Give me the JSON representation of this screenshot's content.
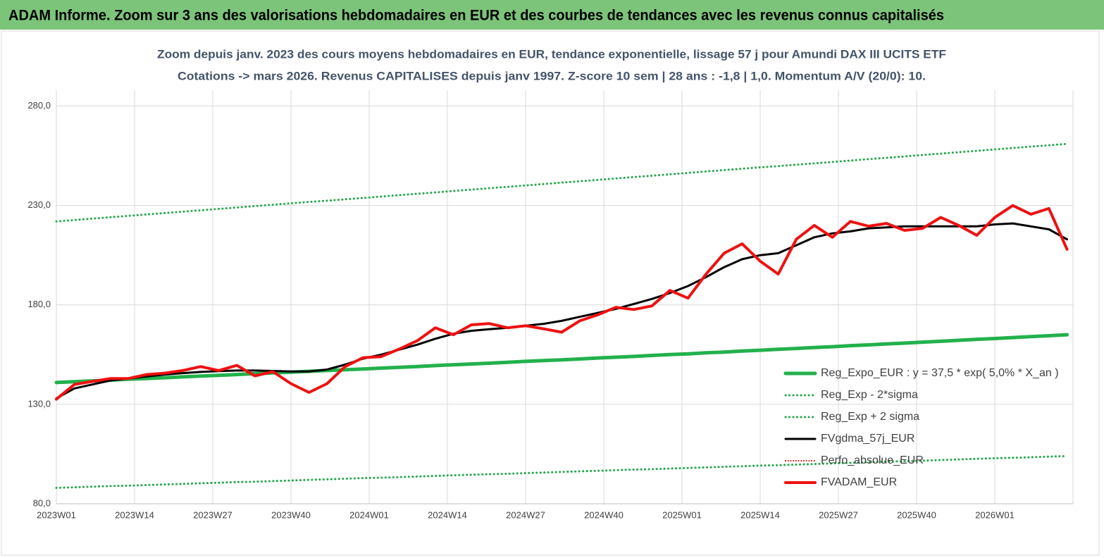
{
  "header": {
    "title": "ADAM Informe. Zoom sur 3 ans des valorisations hebdomadaires en EUR et des courbes de tendances avec les revenus connus capitalisés"
  },
  "chart_data": {
    "type": "line",
    "title": "Zoom depuis janv. 2023 des cours moyens hebdomadaires en EUR, tendance exponentielle, lissage 57 j pour Amundi DAX III UCITS ETF",
    "subtitle": "Cotations -> mars 2026. Revenus CAPITALISES depuis janv 1997. Z-score 10 sem | 28 ans : -1,8 | 1,0. Momentum A/V (20/0): 10.",
    "x": [
      0,
      3,
      6,
      9,
      12,
      15,
      18,
      21,
      24,
      27,
      30,
      33,
      36,
      39,
      42,
      45,
      48,
      51,
      54,
      57,
      60,
      63,
      66,
      69,
      72,
      75,
      78,
      81,
      84,
      87,
      90,
      93,
      96,
      99,
      102,
      105,
      108,
      111,
      114,
      117,
      120,
      123,
      126,
      129,
      132,
      135,
      138,
      141,
      144,
      147,
      150,
      153,
      156,
      159,
      162,
      165,
      168
    ],
    "xlim": [
      0,
      169
    ],
    "xticks": [
      {
        "value": 0,
        "label": "2023W01"
      },
      {
        "value": 13,
        "label": "2023W14"
      },
      {
        "value": 26,
        "label": "2023W27"
      },
      {
        "value": 39,
        "label": "2023W40"
      },
      {
        "value": 52,
        "label": "2024W01"
      },
      {
        "value": 65,
        "label": "2024W14"
      },
      {
        "value": 78,
        "label": "2024W27"
      },
      {
        "value": 91,
        "label": "2024W40"
      },
      {
        "value": 104,
        "label": "2025W01"
      },
      {
        "value": 117,
        "label": "2025W14"
      },
      {
        "value": 130,
        "label": "2025W27"
      },
      {
        "value": 143,
        "label": "2025W40"
      },
      {
        "value": 156,
        "label": "2026W01"
      }
    ],
    "ylim": [
      80,
      288
    ],
    "yticks": [
      {
        "value": 80,
        "label": "80,0"
      },
      {
        "value": 130,
        "label": "130,0"
      },
      {
        "value": 180,
        "label": "180,0"
      },
      {
        "value": 230,
        "label": "230,0"
      },
      {
        "value": 280,
        "label": "280,0"
      }
    ],
    "grid": true,
    "legend": "right",
    "series": [
      {
        "name": "Reg_Expo_EUR : y = 37,5 * exp( 5,0% *  X_an )",
        "color": "#22b14c",
        "style": "solid",
        "width": 5,
        "values": [
          141.0,
          141.4,
          141.8,
          142.2,
          142.6,
          143.0,
          143.4,
          143.8,
          144.2,
          144.6,
          145.0,
          145.4,
          145.8,
          146.2,
          146.6,
          147.0,
          147.4,
          147.8,
          148.2,
          148.6,
          149.0,
          149.5,
          149.9,
          150.3,
          150.7,
          151.1,
          151.6,
          152.0,
          152.4,
          152.8,
          153.3,
          153.7,
          154.1,
          154.6,
          155.0,
          155.4,
          155.9,
          156.3,
          156.8,
          157.2,
          157.7,
          158.1,
          158.6,
          159.0,
          159.5,
          159.9,
          160.4,
          160.8,
          161.3,
          161.7,
          162.2,
          162.7,
          163.1,
          163.6,
          164.1,
          164.5,
          165.0
        ]
      },
      {
        "name": "Reg_Exp - 2*sigma",
        "color": "#22a84a",
        "style": "dotted",
        "width": 3,
        "values": [
          88.0,
          88.3,
          88.6,
          88.9,
          89.1,
          89.4,
          89.7,
          90.0,
          90.3,
          90.6,
          90.9,
          91.1,
          91.4,
          91.7,
          92.0,
          92.3,
          92.6,
          92.9,
          93.1,
          93.4,
          93.7,
          94.0,
          94.3,
          94.6,
          94.9,
          95.1,
          95.4,
          95.7,
          96.0,
          96.3,
          96.6,
          96.9,
          97.2,
          97.4,
          97.7,
          98.0,
          98.3,
          98.6,
          98.9,
          99.2,
          99.4,
          99.7,
          100.0,
          100.3,
          100.6,
          100.9,
          101.2,
          101.4,
          101.7,
          102.0,
          102.3,
          102.6,
          102.9,
          103.1,
          103.4,
          103.7,
          104.0
        ]
      },
      {
        "name": "Reg_Exp + 2 sigma",
        "color": "#22a84a",
        "style": "dotted",
        "width": 3,
        "values": [
          222.0,
          222.7,
          223.4,
          224.1,
          224.8,
          225.5,
          226.2,
          226.9,
          227.6,
          228.3,
          229.0,
          229.7,
          230.4,
          231.1,
          231.8,
          232.4,
          233.1,
          233.8,
          234.5,
          235.2,
          235.9,
          236.6,
          237.3,
          238.0,
          238.7,
          239.4,
          240.1,
          240.8,
          241.5,
          242.2,
          242.9,
          243.6,
          244.3,
          245.0,
          245.7,
          246.4,
          247.1,
          247.8,
          248.5,
          249.2,
          249.8,
          250.5,
          251.2,
          251.9,
          252.6,
          253.3,
          254.0,
          254.7,
          255.4,
          256.1,
          256.8,
          257.5,
          258.2,
          258.9,
          259.6,
          260.3,
          261.0
        ]
      },
      {
        "name": "FVgdma_57j_EUR",
        "color": "#000000",
        "style": "solid",
        "width": 3,
        "values": [
          133,
          138,
          140,
          142,
          143,
          144,
          145,
          145.7,
          146.3,
          146.7,
          147,
          147,
          146.8,
          146.5,
          146.5,
          147.5,
          150,
          153,
          155,
          157.5,
          160,
          163,
          165.5,
          167,
          167.8,
          168.5,
          169.5,
          170.5,
          172,
          174,
          176,
          178,
          180.5,
          183,
          186,
          189.5,
          194,
          199,
          203,
          205,
          206,
          210,
          214,
          216,
          217,
          218.5,
          219,
          219.5,
          219.5,
          219.5,
          219.5,
          219.5,
          220.5,
          221,
          219.5,
          218,
          213
        ]
      },
      {
        "name": "Perfo_absolue_EUR",
        "color": "#e00000",
        "style": "dotted",
        "width": 2
      },
      {
        "name": "FVADAM_EUR",
        "color": "#ee1111",
        "style": "solid",
        "width": 4,
        "values": [
          132.6,
          140,
          141.5,
          143,
          143,
          145,
          145.7,
          147,
          149,
          147,
          149.6,
          144.3,
          146.4,
          140.4,
          136,
          140.4,
          149,
          153.5,
          154,
          157.8,
          162,
          168.5,
          165,
          170,
          170.6,
          168.5,
          169.5,
          168,
          166.3,
          172,
          175,
          178.8,
          177.7,
          179.5,
          187.3,
          183.4,
          195.5,
          206,
          210.7,
          202,
          195.5,
          213,
          220,
          214,
          222,
          219.6,
          221,
          217.5,
          218.5,
          224,
          220,
          215,
          224,
          230,
          225.6,
          228.5,
          208
        ]
      }
    ]
  }
}
